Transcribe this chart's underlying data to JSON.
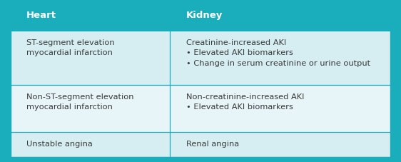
{
  "header_bg": "#1aadbc",
  "row1_bg": "#d6eef2",
  "row2_bg": "#e8f5f8",
  "row3_bg": "#d6eef2",
  "header_text_color": "#ffffff",
  "body_text_color": "#3a3a3a",
  "header_left": "Heart",
  "header_right": "Kidney",
  "col_split": 0.42,
  "rows": [
    {
      "left": "ST-segment elevation\nmyocardial infarction",
      "right": "Creatinine-increased AKI\n• Elevated AKI biomarkers\n• Change in serum creatinine or urine output"
    },
    {
      "left": "Non-ST-segment elevation\nmyocardial infarction",
      "right": "Non-creatinine-increased AKI\n• Elevated AKI biomarkers"
    },
    {
      "left": "Unstable angina",
      "right": "Renal angina"
    }
  ],
  "border_color": "#1aadbc",
  "outer_border_color": "#1aadbc",
  "fig_bg": "#1aadbc",
  "figsize": [
    5.62,
    2.27
  ],
  "dpi": 100
}
